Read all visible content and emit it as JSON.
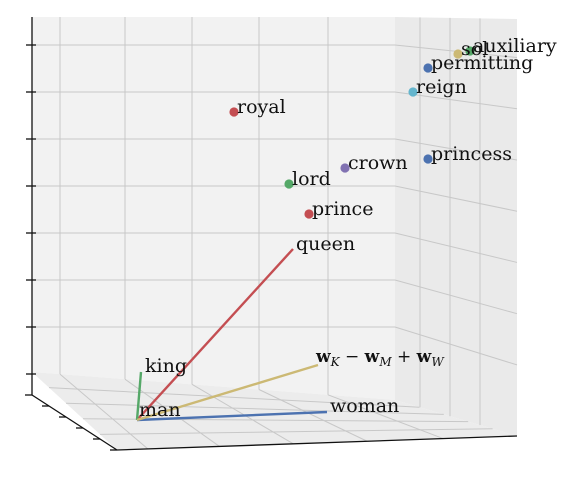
{
  "chart_data": {
    "type": "scatter",
    "title": "",
    "grid": true,
    "points": [
      {
        "label": "royal",
        "color": "#c44e52"
      },
      {
        "label": "crown",
        "color": "#8172b2"
      },
      {
        "label": "lord",
        "color": "#55a868"
      },
      {
        "label": "prince",
        "color": "#c44e52"
      },
      {
        "label": "princess",
        "color": "#4c72b0"
      },
      {
        "label": "reign",
        "color": "#64b5cd"
      },
      {
        "label": "permitting",
        "color": "#4c72b0"
      },
      {
        "label": "sol",
        "color": "#ccb974"
      },
      {
        "label": "auxiliary",
        "color": "#55a868"
      }
    ],
    "vectors": [
      {
        "label": "queen",
        "color": "#c44e52"
      },
      {
        "label": "woman",
        "color": "#4c72b0"
      },
      {
        "label": "king",
        "color": "#55a868"
      },
      {
        "label": "w_K − w_M + w_W",
        "color": "#ccb974"
      }
    ],
    "origin_label": "man"
  }
}
